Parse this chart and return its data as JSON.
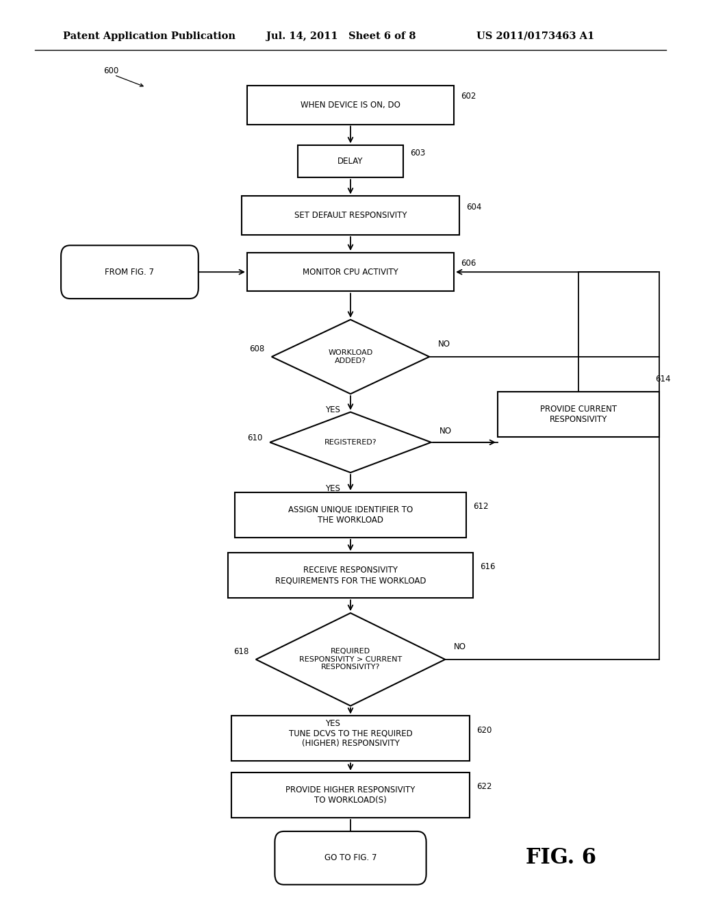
{
  "bg_color": "#ffffff",
  "header_left": "Patent Application Publication",
  "header_mid": "Jul. 14, 2011   Sheet 6 of 8",
  "header_right": "US 2011/0173463 A1",
  "fig_label": "FIG. 6"
}
